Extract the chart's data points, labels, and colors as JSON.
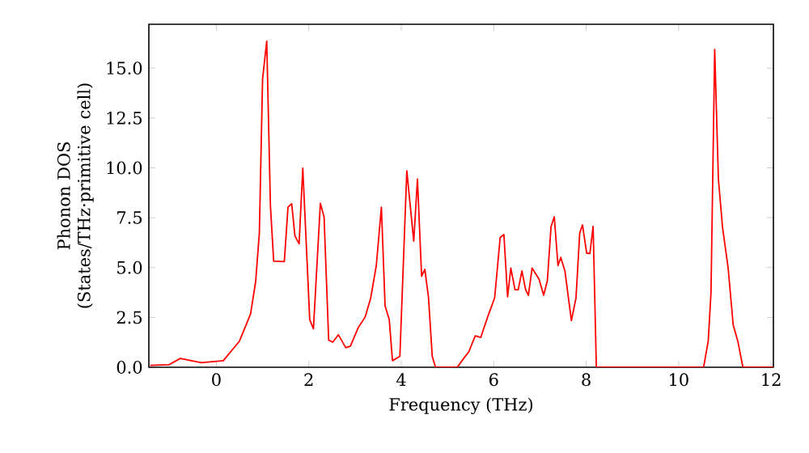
{
  "chart_data": {
    "type": "line",
    "xlabel": "Frequency (THz)",
    "ylabel": "Phonon DOS (States/THz·primitive cell)",
    "xlim": [
      -1.46,
      12.05
    ],
    "ylim": [
      0,
      17.2
    ],
    "xticks": [
      0,
      2,
      4,
      6,
      8,
      10,
      12
    ],
    "yticks": [
      {
        "value": 0,
        "label": "0.0"
      },
      {
        "value": 2.5,
        "label": "2.5"
      },
      {
        "value": 5,
        "label": "5.0"
      },
      {
        "value": 7.5,
        "label": "7.5"
      },
      {
        "value": 10,
        "label": "10.0"
      },
      {
        "value": 12.5,
        "label": "12.5"
      },
      {
        "value": 15,
        "label": "15.0"
      }
    ],
    "grid": false,
    "marker": "none",
    "line_style": "solid",
    "series": [
      {
        "color": "#ff0000",
        "x": [
          -1.43,
          -1.02,
          -0.78,
          -0.32,
          0.15,
          0.5,
          0.74,
          0.85,
          0.93,
          1.0,
          1.09,
          1.17,
          1.24,
          1.47,
          1.55,
          1.63,
          1.7,
          1.79,
          1.87,
          2.02,
          2.1,
          2.25,
          2.33,
          2.43,
          2.52,
          2.64,
          2.8,
          2.9,
          3.07,
          3.22,
          3.34,
          3.46,
          3.57,
          3.65,
          3.74,
          3.81,
          3.97,
          4.12,
          4.27,
          4.35,
          4.44,
          4.51,
          4.59,
          4.67,
          4.74,
          5.21,
          5.35,
          5.46,
          5.6,
          5.72,
          5.87,
          6.02,
          6.14,
          6.22,
          6.3,
          6.37,
          6.46,
          6.53,
          6.61,
          6.69,
          6.75,
          6.83,
          6.98,
          7.08,
          7.16,
          7.24,
          7.31,
          7.39,
          7.45,
          7.54,
          7.68,
          7.78,
          7.86,
          7.92,
          8.01,
          8.08,
          8.15,
          8.22,
          10.54,
          10.64,
          10.7,
          10.78,
          10.86,
          10.95,
          11.07,
          11.18,
          11.28,
          11.39,
          12.05
        ],
        "values": [
          0.1,
          0.13,
          0.44,
          0.23,
          0.33,
          1.31,
          2.67,
          4.29,
          6.73,
          14.46,
          16.35,
          8.08,
          5.32,
          5.3,
          8.03,
          8.2,
          6.59,
          6.19,
          9.98,
          2.39,
          1.93,
          8.22,
          7.54,
          1.36,
          1.26,
          1.63,
          0.98,
          1.06,
          1.99,
          2.53,
          3.48,
          5.1,
          8.03,
          3.07,
          2.39,
          0.33,
          0.55,
          9.85,
          6.32,
          9.44,
          4.56,
          4.91,
          3.48,
          0.55,
          0,
          0,
          0.44,
          0.77,
          1.58,
          1.5,
          2.53,
          3.48,
          6.51,
          6.65,
          3.53,
          4.97,
          3.89,
          3.89,
          4.83,
          3.89,
          3.61,
          4.97,
          4.42,
          3.61,
          4.34,
          7.06,
          7.54,
          5.1,
          5.51,
          4.83,
          2.34,
          3.48,
          6.73,
          7.14,
          5.72,
          5.7,
          7.06,
          0,
          0,
          1.31,
          3.75,
          15.94,
          9.44,
          7.0,
          4.99,
          2.12,
          1.31,
          0,
          0
        ]
      }
    ]
  }
}
